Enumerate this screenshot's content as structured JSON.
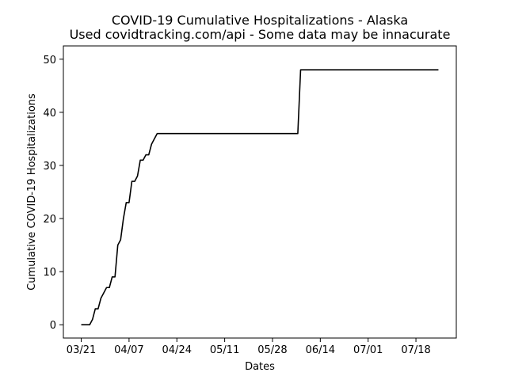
{
  "chart_data": {
    "type": "line",
    "title": "COVID-19 Cumulative Hospitalizations - Alaska",
    "subtitle": "Used covidtracking.com/api - Some data may be innacurate",
    "xlabel": "Dates",
    "ylabel": "Cumulative COVID-19 Hospitalizations",
    "x_ticks": [
      "03/21",
      "04/07",
      "04/24",
      "05/11",
      "05/28",
      "06/14",
      "07/01",
      "07/18"
    ],
    "y_ticks": [
      0,
      10,
      20,
      30,
      40,
      50
    ],
    "x_range": [
      "2020-03-21",
      "2020-07-26"
    ],
    "ylim": [
      0,
      50
    ],
    "grid": false,
    "series": [
      {
        "color": "#000000",
        "points": [
          [
            "2020-03-21",
            0
          ],
          [
            "2020-03-22",
            0
          ],
          [
            "2020-03-23",
            0
          ],
          [
            "2020-03-24",
            0
          ],
          [
            "2020-03-25",
            1
          ],
          [
            "2020-03-26",
            3
          ],
          [
            "2020-03-27",
            3
          ],
          [
            "2020-03-28",
            5
          ],
          [
            "2020-03-29",
            6
          ],
          [
            "2020-03-30",
            7
          ],
          [
            "2020-03-31",
            7
          ],
          [
            "2020-04-01",
            9
          ],
          [
            "2020-04-02",
            9
          ],
          [
            "2020-04-03",
            15
          ],
          [
            "2020-04-04",
            16
          ],
          [
            "2020-04-05",
            20
          ],
          [
            "2020-04-06",
            23
          ],
          [
            "2020-04-07",
            23
          ],
          [
            "2020-04-08",
            27
          ],
          [
            "2020-04-09",
            27
          ],
          [
            "2020-04-10",
            28
          ],
          [
            "2020-04-11",
            31
          ],
          [
            "2020-04-12",
            31
          ],
          [
            "2020-04-13",
            32
          ],
          [
            "2020-04-14",
            32
          ],
          [
            "2020-04-15",
            34
          ],
          [
            "2020-04-16",
            35
          ],
          [
            "2020-04-17",
            36
          ],
          [
            "2020-06-06",
            36
          ],
          [
            "2020-06-07",
            48
          ],
          [
            "2020-07-26",
            48
          ]
        ]
      }
    ]
  }
}
